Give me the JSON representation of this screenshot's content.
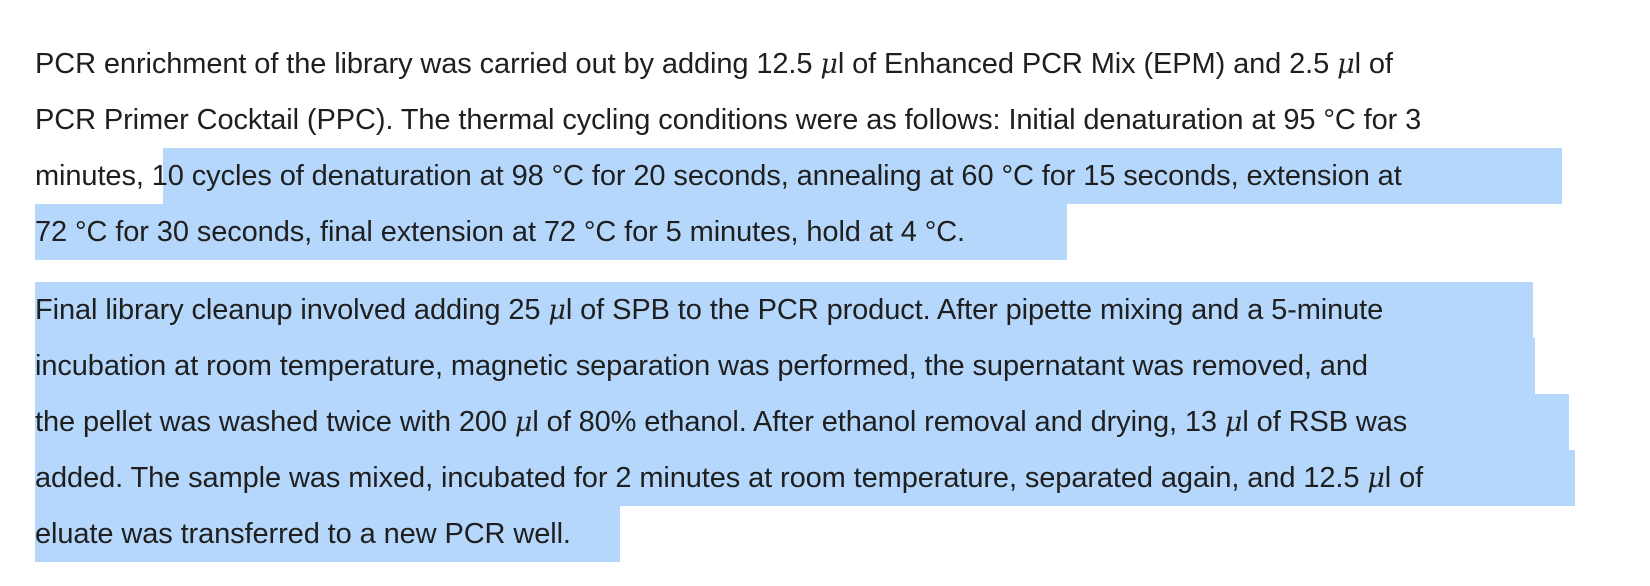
{
  "paragraph_1": {
    "line_1_a": "PCR enrichment of the library was carried out by adding 12.5 ",
    "mu": "μ",
    "line_1_b": "l of Enhanced PCR Mix (EPM) and 2.5 ",
    "line_1_c": "l of",
    "line_2": "PCR Primer Cocktail (PPC). The thermal cycling conditions were as follows: Initial denaturation at 95 °C for 3",
    "line_3_a": "minutes, ",
    "line_3_b": "10 cycles of denaturation at 98 °C for 20 seconds, annealing at 60 °C for 15 seconds, extension at",
    "line_4": "72 °C for 30 seconds, final extension at 72 °C for 5 minutes, hold at 4 °C."
  },
  "paragraph_2": {
    "line_1_a": "Final library cleanup involved adding 25 ",
    "line_1_b": "l of SPB to the PCR product. After pipette mixing and a 5-minute",
    "line_2": "incubation at room temperature, magnetic separation was performed, the supernatant was removed, and",
    "line_3_a": "the pellet was washed twice with 200 ",
    "line_3_b": "l of 80% ethanol. After ethanol removal and drying, 13 ",
    "line_3_c": "l of RSB was",
    "line_4_a": "added. The sample was mixed, incubated for 2 minutes at room temperature, separated again, and 12.5 ",
    "line_4_b": "l of",
    "line_5": "eluate was transferred to a new PCR well."
  },
  "selection_color": "#b4d7fb"
}
